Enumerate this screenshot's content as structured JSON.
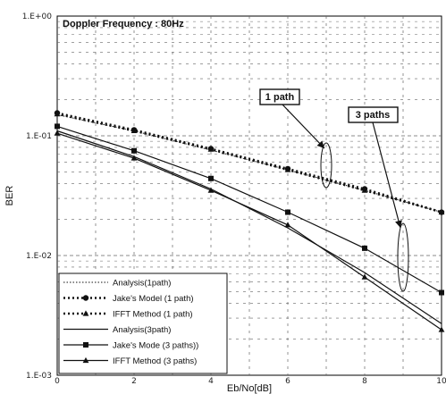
{
  "chart_data": {
    "type": "line",
    "title": "Doppler Frequency : 80Hz",
    "xlabel": "Eb/No[dB]",
    "ylabel": "BER",
    "xlim": [
      0,
      10
    ],
    "ylim": [
      0.001,
      1
    ],
    "yscale": "log",
    "grid": true,
    "legend_position": "bottom-left",
    "x_ticks": [
      "0",
      "2",
      "4",
      "6",
      "8",
      "10"
    ],
    "y_ticks": [
      "1.E+00",
      "1.E-01",
      "1.E-02",
      "1.E-03"
    ],
    "x": [
      0,
      2,
      4,
      6,
      8,
      10
    ],
    "series": [
      {
        "name": "Analysis(1path)",
        "style": "dotted-thin",
        "marker": "none",
        "values": [
          0.15,
          0.11,
          0.076,
          0.052,
          0.035,
          0.023
        ]
      },
      {
        "name": "Jake's Model (1 path)",
        "style": "dotted-thick",
        "marker": "circle",
        "values": [
          0.155,
          0.112,
          0.078,
          0.053,
          0.036,
          0.023
        ]
      },
      {
        "name": "IFFT Method (1 path)",
        "style": "dotted-thick",
        "marker": "triangle",
        "values": [
          0.152,
          0.11,
          0.077,
          0.052,
          0.035,
          0.023
        ]
      },
      {
        "name": "Analysis(3path)",
        "style": "solid",
        "marker": "none",
        "values": [
          0.11,
          0.067,
          0.036,
          0.017,
          0.0072,
          0.0027
        ]
      },
      {
        "name": "Jake's Mode (3 paths))",
        "style": "solid",
        "marker": "square",
        "values": [
          0.12,
          0.075,
          0.044,
          0.023,
          0.0115,
          0.0049
        ]
      },
      {
        "name": "IFFT Method (3 paths)",
        "style": "solid",
        "marker": "triangle",
        "values": [
          0.105,
          0.065,
          0.035,
          0.018,
          0.0066,
          0.0024
        ]
      }
    ],
    "annotations": [
      {
        "text": "1 path",
        "points_to": "1 path curves at Eb/No = 7"
      },
      {
        "text": "3 paths",
        "points_to": "3 paths curves at Eb/No = 9"
      }
    ]
  }
}
